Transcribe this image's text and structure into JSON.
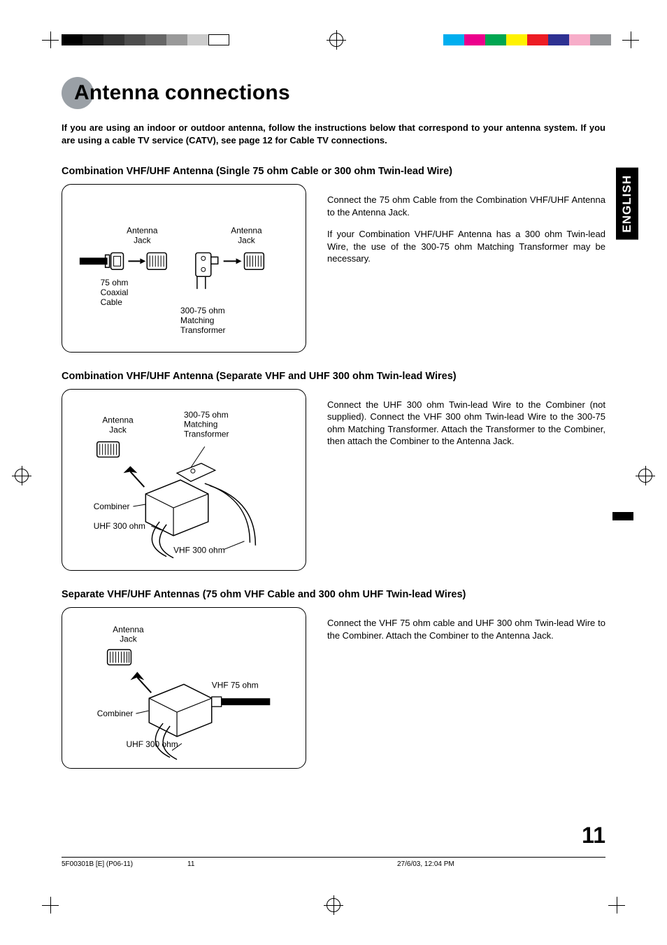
{
  "title": "Antenna connections",
  "intro": "If you are using an indoor or outdoor antenna, follow the instructions below that correspond to your antenna system. If you are using a cable TV service (CATV), see page 12 for Cable TV connections.",
  "lang_tab": "ENGLISH",
  "page_number": "11",
  "sections": [
    {
      "heading": "Combination VHF/UHF Antenna (Single 75 ohm Cable or 300 ohm Twin-lead Wire)",
      "paras": [
        "Connect the 75 ohm Cable from the Combination VHF/UHF Antenna to the Antenna Jack.",
        "If your Combination VHF/UHF Antenna has a 300 ohm Twin-lead Wire, the use of the 300-75 ohm Matching Transformer may be necessary."
      ],
      "labels": {
        "antenna_jack_l": "Antenna\nJack",
        "antenna_jack_r": "Antenna\nJack",
        "coax": "75 ohm\nCoaxial\nCable",
        "transformer": "300-75 ohm\nMatching\nTransformer"
      }
    },
    {
      "heading": "Combination VHF/UHF Antenna (Separate VHF and UHF 300 ohm Twin-lead Wires)",
      "paras": [
        "Connect the UHF 300 ohm Twin-lead Wire to the Combiner (not supplied). Connect the VHF 300 ohm Twin-lead Wire to the 300-75 ohm Matching Transformer. Attach the Transformer to the Combiner, then attach the Combiner to the Antenna Jack."
      ],
      "labels": {
        "antenna_jack": "Antenna\nJack",
        "transformer": "300-75 ohm\nMatching\nTransformer",
        "combiner": "Combiner",
        "uhf300": "UHF 300 ohm",
        "vhf300": "VHF 300 ohm"
      }
    },
    {
      "heading": "Separate VHF/UHF Antennas (75 ohm VHF Cable and 300 ohm UHF Twin-lead Wires)",
      "paras": [
        "Connect the VHF 75 ohm cable and UHF 300 ohm Twin-lead Wire to the Combiner. Attach the Combiner to the Antenna Jack."
      ],
      "labels": {
        "antenna_jack": "Antenna\nJack",
        "combiner": "Combiner",
        "uhf300": "UHF 300 ohm",
        "vhf75": "VHF 75 ohm"
      }
    }
  ],
  "footer": {
    "file": "5F00301B [E] (P06-11)",
    "page": "11",
    "date": "27/6/03, 12:04 PM"
  },
  "print_colors_left": [
    "#000000",
    "#1a1a1a",
    "#333333",
    "#4d4d4d",
    "#666666",
    "#999999",
    "#cccccc",
    "#ffffff"
  ],
  "print_colors_right": [
    "#00aeef",
    "#ec008c",
    "#00a651",
    "#fff200",
    "#ed1c24",
    "#2e3192",
    "#f7adc9",
    "#929497"
  ]
}
